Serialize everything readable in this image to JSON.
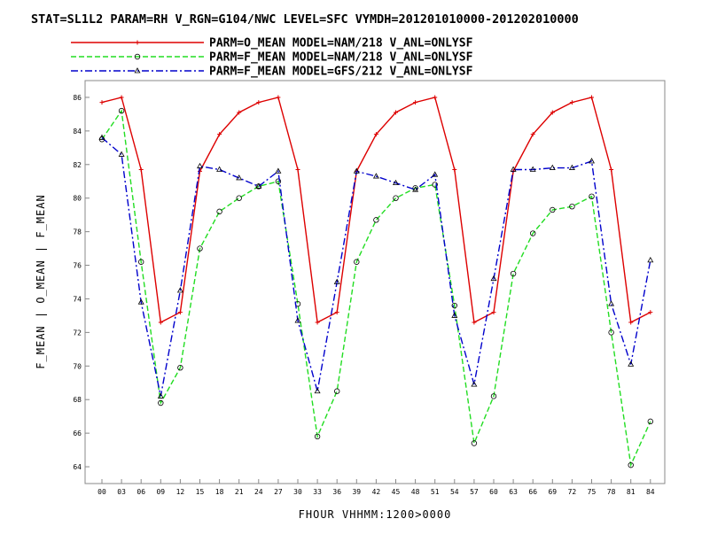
{
  "chart_data": {
    "type": "line",
    "title": "STAT=SL1L2 PARAM=RH V_RGN=G104/NWC LEVEL=SFC VYMDH=201201010000-201202010000",
    "xlabel": "FHOUR VHHMM:1200>0000",
    "ylabel": "F_MEAN | O_MEAN | F_MEAN",
    "categories": [
      "00",
      "03",
      "06",
      "09",
      "12",
      "15",
      "18",
      "21",
      "24",
      "27",
      "30",
      "33",
      "36",
      "39",
      "42",
      "45",
      "48",
      "51",
      "54",
      "57",
      "60",
      "63",
      "66",
      "69",
      "72",
      "75",
      "78",
      "81",
      "84"
    ],
    "ylim": [
      63,
      87
    ],
    "yticks": [
      64,
      66,
      68,
      70,
      72,
      74,
      76,
      78,
      80,
      82,
      84,
      86
    ],
    "grid": false,
    "legend_position": "top",
    "series": [
      {
        "name": "PARM=O_MEAN MODEL=NAM/218 V_ANL=ONLYSF",
        "color": "#dd0000",
        "dash": "solid",
        "marker": "plus",
        "values": [
          85.7,
          86.0,
          81.7,
          72.6,
          73.2,
          81.6,
          83.8,
          85.1,
          85.7,
          86.0,
          81.7,
          72.6,
          73.2,
          81.6,
          83.8,
          85.1,
          85.7,
          86.0,
          81.7,
          72.6,
          73.2,
          81.6,
          83.8,
          85.1,
          85.7,
          86.0,
          81.7,
          72.6,
          73.2
        ]
      },
      {
        "name": "PARM=F_MEAN MODEL=NAM/218 V_ANL=ONLYSF",
        "color": "#22dd22",
        "dash": "dashed",
        "marker": "circle",
        "values": [
          83.5,
          85.2,
          76.2,
          67.8,
          69.9,
          77.0,
          79.2,
          80.0,
          80.7,
          81.0,
          73.7,
          65.8,
          68.5,
          76.2,
          78.7,
          80.0,
          80.6,
          80.8,
          73.6,
          65.4,
          68.2,
          75.5,
          77.9,
          79.3,
          79.5,
          80.1,
          72.0,
          64.1,
          66.7
        ]
      },
      {
        "name": "PARM=F_MEAN MODEL=GFS/212 V_ANL=ONLYSF",
        "color": "#0000cc",
        "dash": "dashdot",
        "marker": "triangle",
        "values": [
          83.6,
          82.6,
          73.8,
          68.2,
          74.5,
          81.9,
          81.7,
          81.2,
          80.7,
          81.6,
          72.7,
          68.5,
          75.0,
          81.6,
          81.3,
          80.9,
          80.5,
          81.4,
          73.0,
          68.9,
          75.2,
          81.7,
          81.7,
          81.8,
          81.8,
          82.2,
          73.7,
          70.1,
          76.3
        ]
      }
    ]
  }
}
